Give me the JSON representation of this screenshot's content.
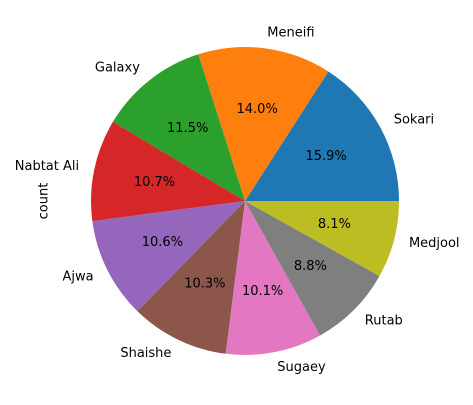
{
  "chart_data": {
    "type": "pie",
    "ylabel": "count",
    "start_angle_deg": 0,
    "direction": "counterclockwise",
    "slices": [
      {
        "label": "Sokari",
        "percent": 15.9,
        "pct_label": "15.9%",
        "color": "#1f77b4"
      },
      {
        "label": "Meneifi",
        "percent": 14.0,
        "pct_label": "14.0%",
        "color": "#ff7f0e"
      },
      {
        "label": "Galaxy",
        "percent": 11.5,
        "pct_label": "11.5%",
        "color": "#2ca02c"
      },
      {
        "label": "Nabtat Ali",
        "percent": 10.7,
        "pct_label": "10.7%",
        "color": "#d62728"
      },
      {
        "label": "Ajwa",
        "percent": 10.6,
        "pct_label": "10.6%",
        "color": "#9467bd"
      },
      {
        "label": "Shaishe",
        "percent": 10.3,
        "pct_label": "10.3%",
        "color": "#8c564b"
      },
      {
        "label": "Sugaey",
        "percent": 10.1,
        "pct_label": "10.1%",
        "color": "#e377c2"
      },
      {
        "label": "Rutab",
        "percent": 8.8,
        "pct_label": "8.8%",
        "color": "#7f7f7f"
      },
      {
        "label": "Medjool",
        "percent": 8.1,
        "pct_label": "8.1%",
        "color": "#bcbd22"
      }
    ]
  }
}
